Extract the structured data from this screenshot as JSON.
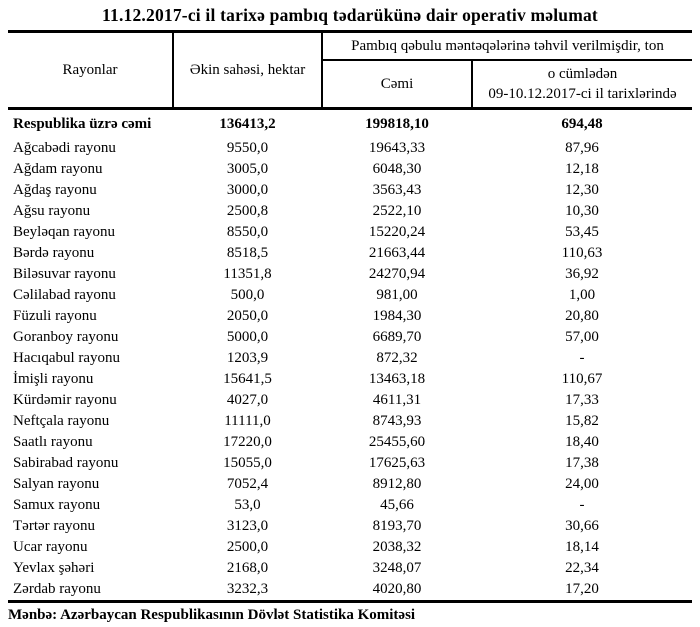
{
  "title": "11.12.2017-ci il tarixə pambıq tədarükünə dair operativ məlumat",
  "table": {
    "headers": {
      "rayonlar": "Rayonlar",
      "ekin_sahesi": "Əkin sahəsi, hektar",
      "pambiq_span": "Pambıq qəbulu məntəqələrinə təhvil verilmişdir, ton",
      "cemi": "Cəmi",
      "ocumleden_line1": "o cümlədən",
      "ocumleden_line2": "09-10.12.2017-ci il tarixlərində"
    },
    "total_row": {
      "name": "Respublika üzrə cəmi",
      "area": "136413,2",
      "total": "199818,10",
      "recent": "694,48"
    },
    "rows": [
      {
        "name": "Ağcabədi rayonu",
        "area": "9550,0",
        "total": "19643,33",
        "recent": "87,96"
      },
      {
        "name": "Ağdam rayonu",
        "area": "3005,0",
        "total": "6048,30",
        "recent": "12,18"
      },
      {
        "name": "Ağdaş rayonu",
        "area": "3000,0",
        "total": "3563,43",
        "recent": "12,30"
      },
      {
        "name": "Ağsu rayonu",
        "area": "2500,8",
        "total": "2522,10",
        "recent": "10,30"
      },
      {
        "name": "Beyləqan rayonu",
        "area": "8550,0",
        "total": "15220,24",
        "recent": "53,45"
      },
      {
        "name": "Bərdə rayonu",
        "area": "8518,5",
        "total": "21663,44",
        "recent": "110,63"
      },
      {
        "name": "Biləsuvar rayonu",
        "area": "11351,8",
        "total": "24270,94",
        "recent": "36,92"
      },
      {
        "name": "Cəlilabad rayonu",
        "area": "500,0",
        "total": "981,00",
        "recent": "1,00"
      },
      {
        "name": "Füzuli rayonu",
        "area": "2050,0",
        "total": "1984,30",
        "recent": "20,80"
      },
      {
        "name": "Goranboy rayonu",
        "area": "5000,0",
        "total": "6689,70",
        "recent": "57,00"
      },
      {
        "name": "Hacıqabul rayonu",
        "area": "1203,9",
        "total": "872,32",
        "recent": "-"
      },
      {
        "name": "İmişli rayonu",
        "area": "15641,5",
        "total": "13463,18",
        "recent": "110,67"
      },
      {
        "name": "Kürdəmir rayonu",
        "area": "4027,0",
        "total": "4611,31",
        "recent": "17,33"
      },
      {
        "name": "Neftçala rayonu",
        "area": "11111,0",
        "total": "8743,93",
        "recent": "15,82"
      },
      {
        "name": "Saatlı rayonu",
        "area": "17220,0",
        "total": "25455,60",
        "recent": "18,40"
      },
      {
        "name": "Sabirabad rayonu",
        "area": "15055,0",
        "total": "17625,63",
        "recent": "17,38"
      },
      {
        "name": "Salyan rayonu",
        "area": "7052,4",
        "total": "8912,80",
        "recent": "24,00"
      },
      {
        "name": "Samux rayonu",
        "area": "53,0",
        "total": "45,66",
        "recent": "-"
      },
      {
        "name": "Tərtər rayonu",
        "area": "3123,0",
        "total": "8193,70",
        "recent": "30,66"
      },
      {
        "name": "Ucar rayonu",
        "area": "2500,0",
        "total": "2038,32",
        "recent": "18,14"
      },
      {
        "name": "Yevlax şəhəri",
        "area": "2168,0",
        "total": "3248,07",
        "recent": "22,34"
      },
      {
        "name": "Zərdab rayonu",
        "area": "3232,3",
        "total": "4020,80",
        "recent": "17,20"
      }
    ]
  },
  "source": "Mənbə: Azərbaycan Respublikasının Dövlət Statistika Komitəsi"
}
